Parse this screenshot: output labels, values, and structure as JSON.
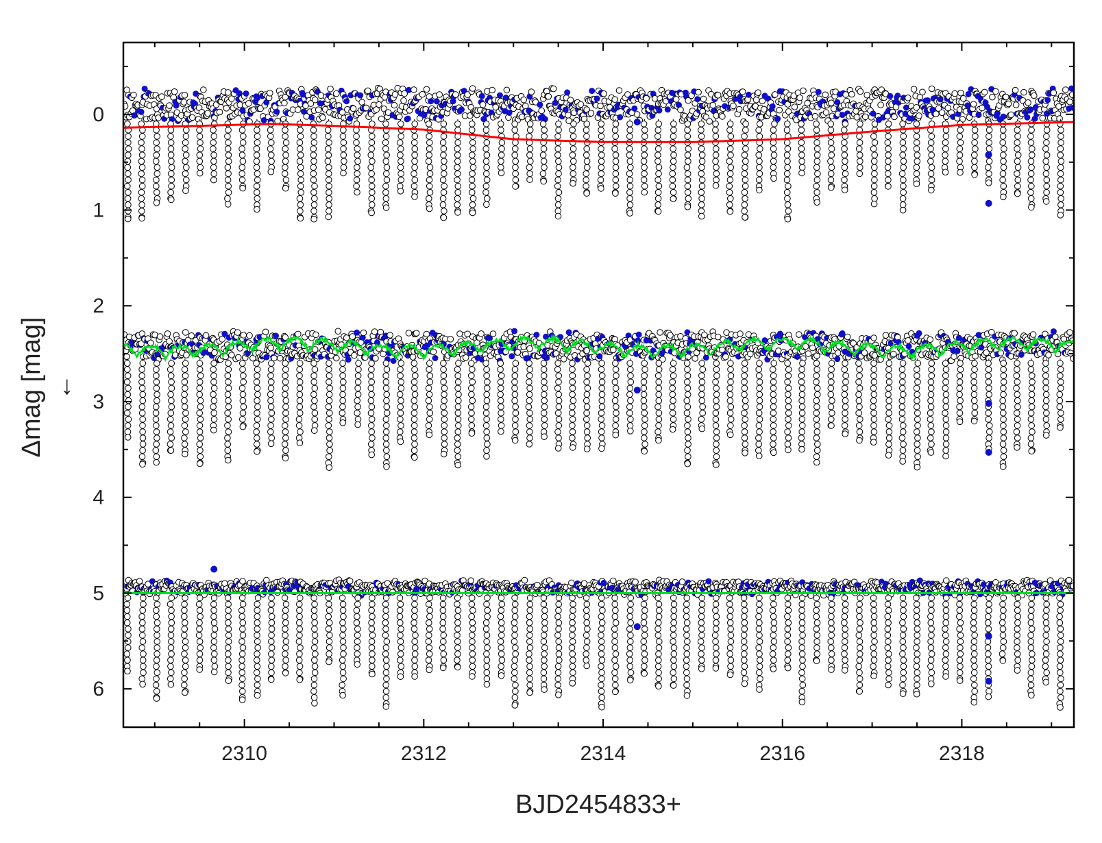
{
  "chart_data": {
    "type": "scatter",
    "title": "",
    "xlabel": "BJD2454833+",
    "ylabel": "Δmag [mag]",
    "ylabel_arrow": "←",
    "xlim": [
      2308.65,
      2319.25
    ],
    "ylim": [
      6.4,
      -0.75
    ],
    "y_inverted": true,
    "x_ticks": [
      2310,
      2312,
      2314,
      2316,
      2318
    ],
    "x_minor_step": 0.5,
    "y_ticks": [
      0,
      1,
      2,
      3,
      4,
      5,
      6
    ],
    "y_minor_step": 0.5,
    "grid": false,
    "legend": "none",
    "eclipse_period_days": 0.16,
    "colors": {
      "observed_points": "#000000",
      "highlighted_points": "#1010cc",
      "trend_curve": "#ff0000",
      "fit_curve": "#00dd22",
      "residual_line": "#00dd22"
    },
    "series": [
      {
        "role": "original light curve",
        "baseline_mag": 0.05,
        "top_scatter_mag": -0.35,
        "eclipse_depth_range_mag": [
          0.6,
          1.1
        ],
        "curve_color": "#ff0000",
        "curve_points": [
          [
            2308.65,
            0.14
          ],
          [
            2309.5,
            0.12
          ],
          [
            2310.3,
            0.1
          ],
          [
            2311.0,
            0.12
          ],
          [
            2312.0,
            0.16
          ],
          [
            2313.0,
            0.26
          ],
          [
            2314.0,
            0.29
          ],
          [
            2315.0,
            0.29
          ],
          [
            2316.0,
            0.26
          ],
          [
            2317.0,
            0.18
          ],
          [
            2318.0,
            0.11
          ],
          [
            2319.25,
            0.08
          ]
        ]
      },
      {
        "role": "trend-removed light curve (offset)",
        "baseline_mag": 2.55,
        "top_scatter_mag": 2.2,
        "eclipse_depth_range_mag": [
          3.2,
          3.7
        ],
        "curve_color": "#00dd22",
        "curve_level_mag": 2.5,
        "curve_amplitude_mag": 0.12
      },
      {
        "role": "residuals (offset)",
        "baseline_mag": 5.0,
        "top_scatter_mag": 4.85,
        "eclipse_depth_range_mag": [
          5.7,
          6.2
        ],
        "curve_color": "#00dd22",
        "line_level_mag": 5.0
      }
    ],
    "isolated_points": [
      [
        2309.66,
        4.75
      ],
      [
        2314.38,
        0.08
      ],
      [
        2314.38,
        2.88
      ],
      [
        2314.38,
        5.35
      ],
      [
        2318.3,
        0.42
      ],
      [
        2318.3,
        0.93
      ],
      [
        2318.3,
        3.02
      ],
      [
        2318.3,
        3.53
      ],
      [
        2318.3,
        5.45
      ],
      [
        2318.3,
        5.92
      ]
    ]
  }
}
